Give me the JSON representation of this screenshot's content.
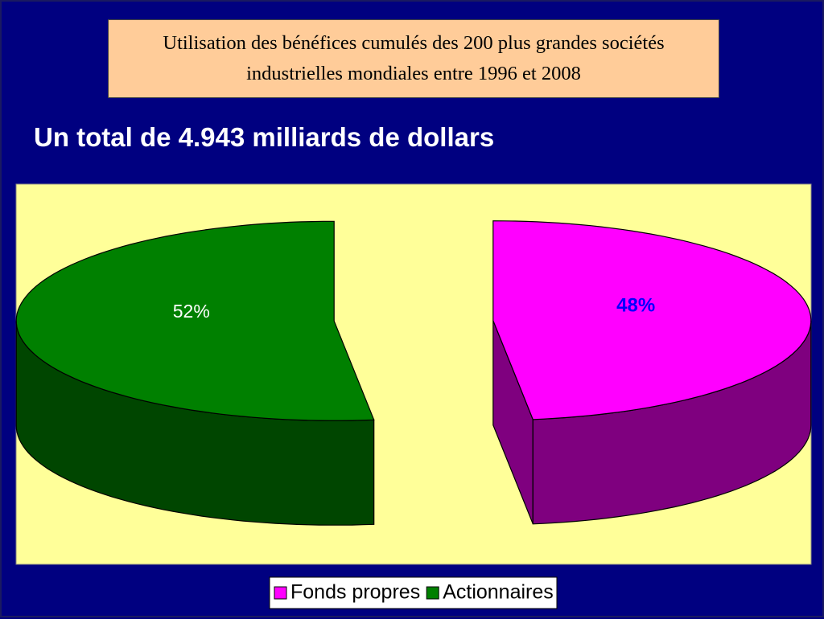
{
  "title": "Utilisation des bénéfices cumulés des 200 plus grandes sociétés industrielles mondiales entre 1996 et 2008",
  "chart_data": {
    "type": "pie3d",
    "title": "Un total de 4.943 milliards de dollars",
    "categories": [
      "Fonds propres",
      "Actionnaires"
    ],
    "values": [
      48,
      52
    ],
    "value_labels": [
      "48%",
      "52%"
    ],
    "colors": [
      "#ff00ff",
      "#008000"
    ]
  }
}
